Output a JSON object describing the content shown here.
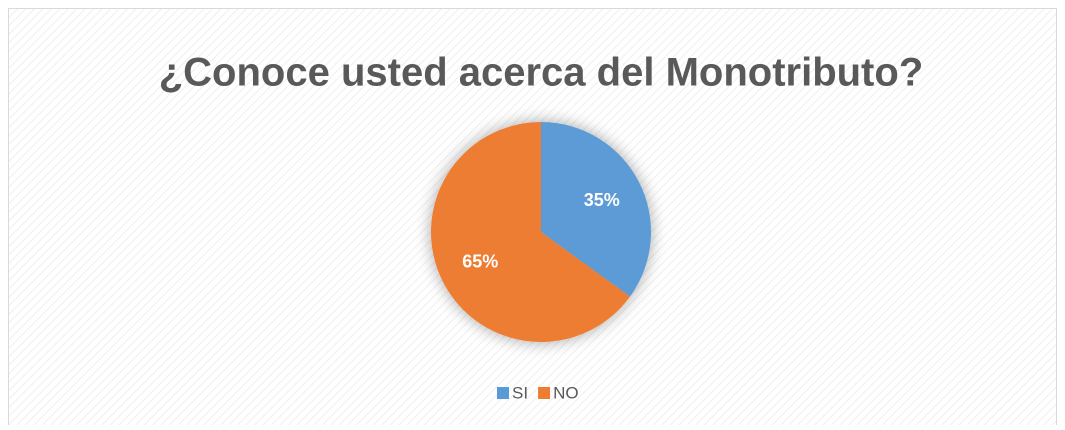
{
  "chart_data": {
    "type": "pie",
    "title": "¿Conoce usted acerca del Monotributo?",
    "categories": [
      "SI",
      "NO"
    ],
    "values": [
      35,
      65
    ],
    "value_labels": [
      "35%",
      "65%"
    ],
    "colors": [
      "#5b9bd5",
      "#ed7d31"
    ],
    "legend": "bottom"
  }
}
